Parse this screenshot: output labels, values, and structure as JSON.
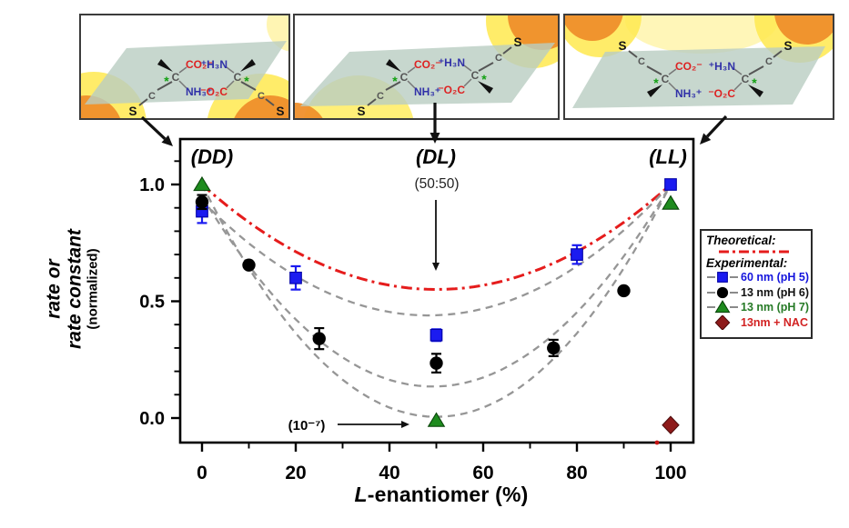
{
  "figure": {
    "background": "#ffffff"
  },
  "panels": [
    {
      "id": "DD",
      "molecules": [
        {
          "position": "left",
          "top_label": "CO₂⁻",
          "top_color": "#dd2222",
          "bottom_label": "NH₃⁺",
          "bottom_color": "#3030a8",
          "chiral_star": "*",
          "carbon_label": "C",
          "thiol_label": "S",
          "thiol_direction": "down"
        },
        {
          "position": "right",
          "top_label": "⁺H₃N",
          "top_color": "#3030a8",
          "bottom_label": "⁻O₂C",
          "bottom_color": "#dd2222",
          "chiral_star": "*",
          "carbon_label": "C",
          "thiol_label": "S",
          "thiol_direction": "down"
        }
      ]
    },
    {
      "id": "DL",
      "molecules": [
        {
          "position": "left",
          "top_label": "CO₂⁻",
          "top_color": "#dd2222",
          "bottom_label": "NH₃⁺",
          "bottom_color": "#3030a8",
          "chiral_star": "*",
          "carbon_label": "C",
          "thiol_label": "S",
          "thiol_direction": "down"
        },
        {
          "position": "right",
          "top_label": "⁺H₃N",
          "top_color": "#3030a8",
          "bottom_label": "⁻O₂C",
          "bottom_color": "#dd2222",
          "chiral_star": "*",
          "carbon_label": "C",
          "thiol_label": "S",
          "thiol_direction": "up"
        }
      ]
    },
    {
      "id": "LL",
      "molecules": [
        {
          "position": "left",
          "top_label": "CO₂⁻",
          "top_color": "#dd2222",
          "bottom_label": "NH₃⁺",
          "bottom_color": "#3030a8",
          "chiral_star": "*",
          "carbon_label": "C",
          "thiol_label": "S",
          "thiol_direction": "up"
        },
        {
          "position": "right",
          "top_label": "⁺H₃N",
          "top_color": "#3030a8",
          "bottom_label": "⁻O₂C",
          "bottom_color": "#dd2222",
          "chiral_star": "*",
          "carbon_label": "C",
          "thiol_label": "S",
          "thiol_direction": "up"
        }
      ]
    }
  ],
  "chart_data": {
    "type": "scatter",
    "title": "",
    "xlabel": "L-enantiomer (%)",
    "xlabel_italic_prefix": "L",
    "xlabel_rest": "-enantiomer (%)",
    "ylabel_lines": [
      "rate or",
      "rate constant"
    ],
    "ylabel_sub": "(normalized)",
    "xlim": [
      -4.7,
      104.9
    ],
    "ylim": [
      -0.105,
      1.195
    ],
    "x_ticks": [
      0,
      20,
      40,
      60,
      80,
      100
    ],
    "x_minor_ticks": [
      10,
      30,
      50,
      70,
      90
    ],
    "y_ticks": [
      {
        "value": 1.0,
        "label": "1.0"
      },
      {
        "value": 0.5,
        "label": "0.5"
      },
      {
        "value": 0.0,
        "label": "0.0"
      }
    ],
    "y_minor_step": 0.1,
    "grid": false,
    "legend_position": "outside-right",
    "curves": [
      {
        "name": "theoretical",
        "color": "#e51c1c",
        "style": "dash-dot",
        "width": 3,
        "points": [
          [
            0,
            1.0
          ],
          [
            55,
            0.555
          ],
          [
            100,
            1.0
          ]
        ]
      },
      {
        "name": "fit-shallow",
        "color": "#969696",
        "style": "dashed",
        "width": 2.3,
        "points": [
          [
            0,
            0.93
          ],
          [
            50,
            0.44
          ],
          [
            100,
            1.0
          ]
        ]
      },
      {
        "name": "fit-middle",
        "color": "#969696",
        "style": "dashed",
        "width": 2.3,
        "points": [
          [
            0,
            0.95
          ],
          [
            50,
            0.135
          ],
          [
            100,
            1.0
          ]
        ]
      },
      {
        "name": "fit-deep",
        "color": "#969696",
        "style": "dashed",
        "width": 2.3,
        "points": [
          [
            0,
            1.0
          ],
          [
            50,
            0.005
          ],
          [
            100,
            1.0
          ]
        ]
      }
    ],
    "series": [
      {
        "name": "60 nm (pH 5)",
        "marker": "square",
        "color": "#1b1bf0",
        "points": [
          {
            "x": 0,
            "y": 0.885,
            "err": 0.05
          },
          {
            "x": 20,
            "y": 0.6,
            "err": 0.05
          },
          {
            "x": 50,
            "y": 0.355,
            "err": 0.025
          },
          {
            "x": 80,
            "y": 0.7,
            "err": 0.04
          },
          {
            "x": 100,
            "y": 1.0,
            "err": 0.015
          }
        ]
      },
      {
        "name": "13 nm (pH 6)",
        "marker": "circle",
        "color": "#000000",
        "points": [
          {
            "x": 0,
            "y": 0.925,
            "err": 0.03
          },
          {
            "x": 10,
            "y": 0.655,
            "err": 0
          },
          {
            "x": 25,
            "y": 0.34,
            "err": 0.045
          },
          {
            "x": 50,
            "y": 0.235,
            "err": 0.04
          },
          {
            "x": 75,
            "y": 0.3,
            "err": 0.035
          },
          {
            "x": 90,
            "y": 0.545,
            "err": 0
          }
        ]
      },
      {
        "name": "13 nm (pH 7)",
        "marker": "triangle",
        "color": "#1e8b1e",
        "points": [
          {
            "x": 0,
            "y": 1.0,
            "err": 0
          },
          {
            "x": 50,
            "y": -0.01,
            "err": 0
          },
          {
            "x": 100,
            "y": 0.92,
            "err": 0
          }
        ]
      },
      {
        "name": "13nm + NAC",
        "marker": "diamond",
        "color": "#8e1a1a",
        "points": [
          {
            "x": 100,
            "y": -0.03,
            "err": 0
          }
        ]
      }
    ],
    "annotations": {
      "dd": "(DD)",
      "dl": "(DL)",
      "dl_ratio": "(50:50)",
      "ll": "(LL)",
      "near_zero": "(10⁻⁷)"
    }
  },
  "legend": {
    "theoretical_heading": "Theoretical:",
    "theoretical_color": "#e51c1c",
    "experimental_heading": "Experimental:",
    "entries": [
      {
        "label": "60 nm (pH 5)",
        "marker": "square",
        "marker_color": "#1b1bf0",
        "text_color": "#1414dd"
      },
      {
        "label": "13 nm (pH 6)",
        "marker": "circle",
        "marker_color": "#000000",
        "text_color": "#111111"
      },
      {
        "label": "13 nm (pH 7)",
        "marker": "triangle",
        "marker_color": "#1e8b1e",
        "text_color": "#267a26"
      },
      {
        "label": "13nm + NAC",
        "marker": "diamond",
        "marker_color": "#8e1a1a",
        "text_color": "#d22222"
      }
    ]
  }
}
